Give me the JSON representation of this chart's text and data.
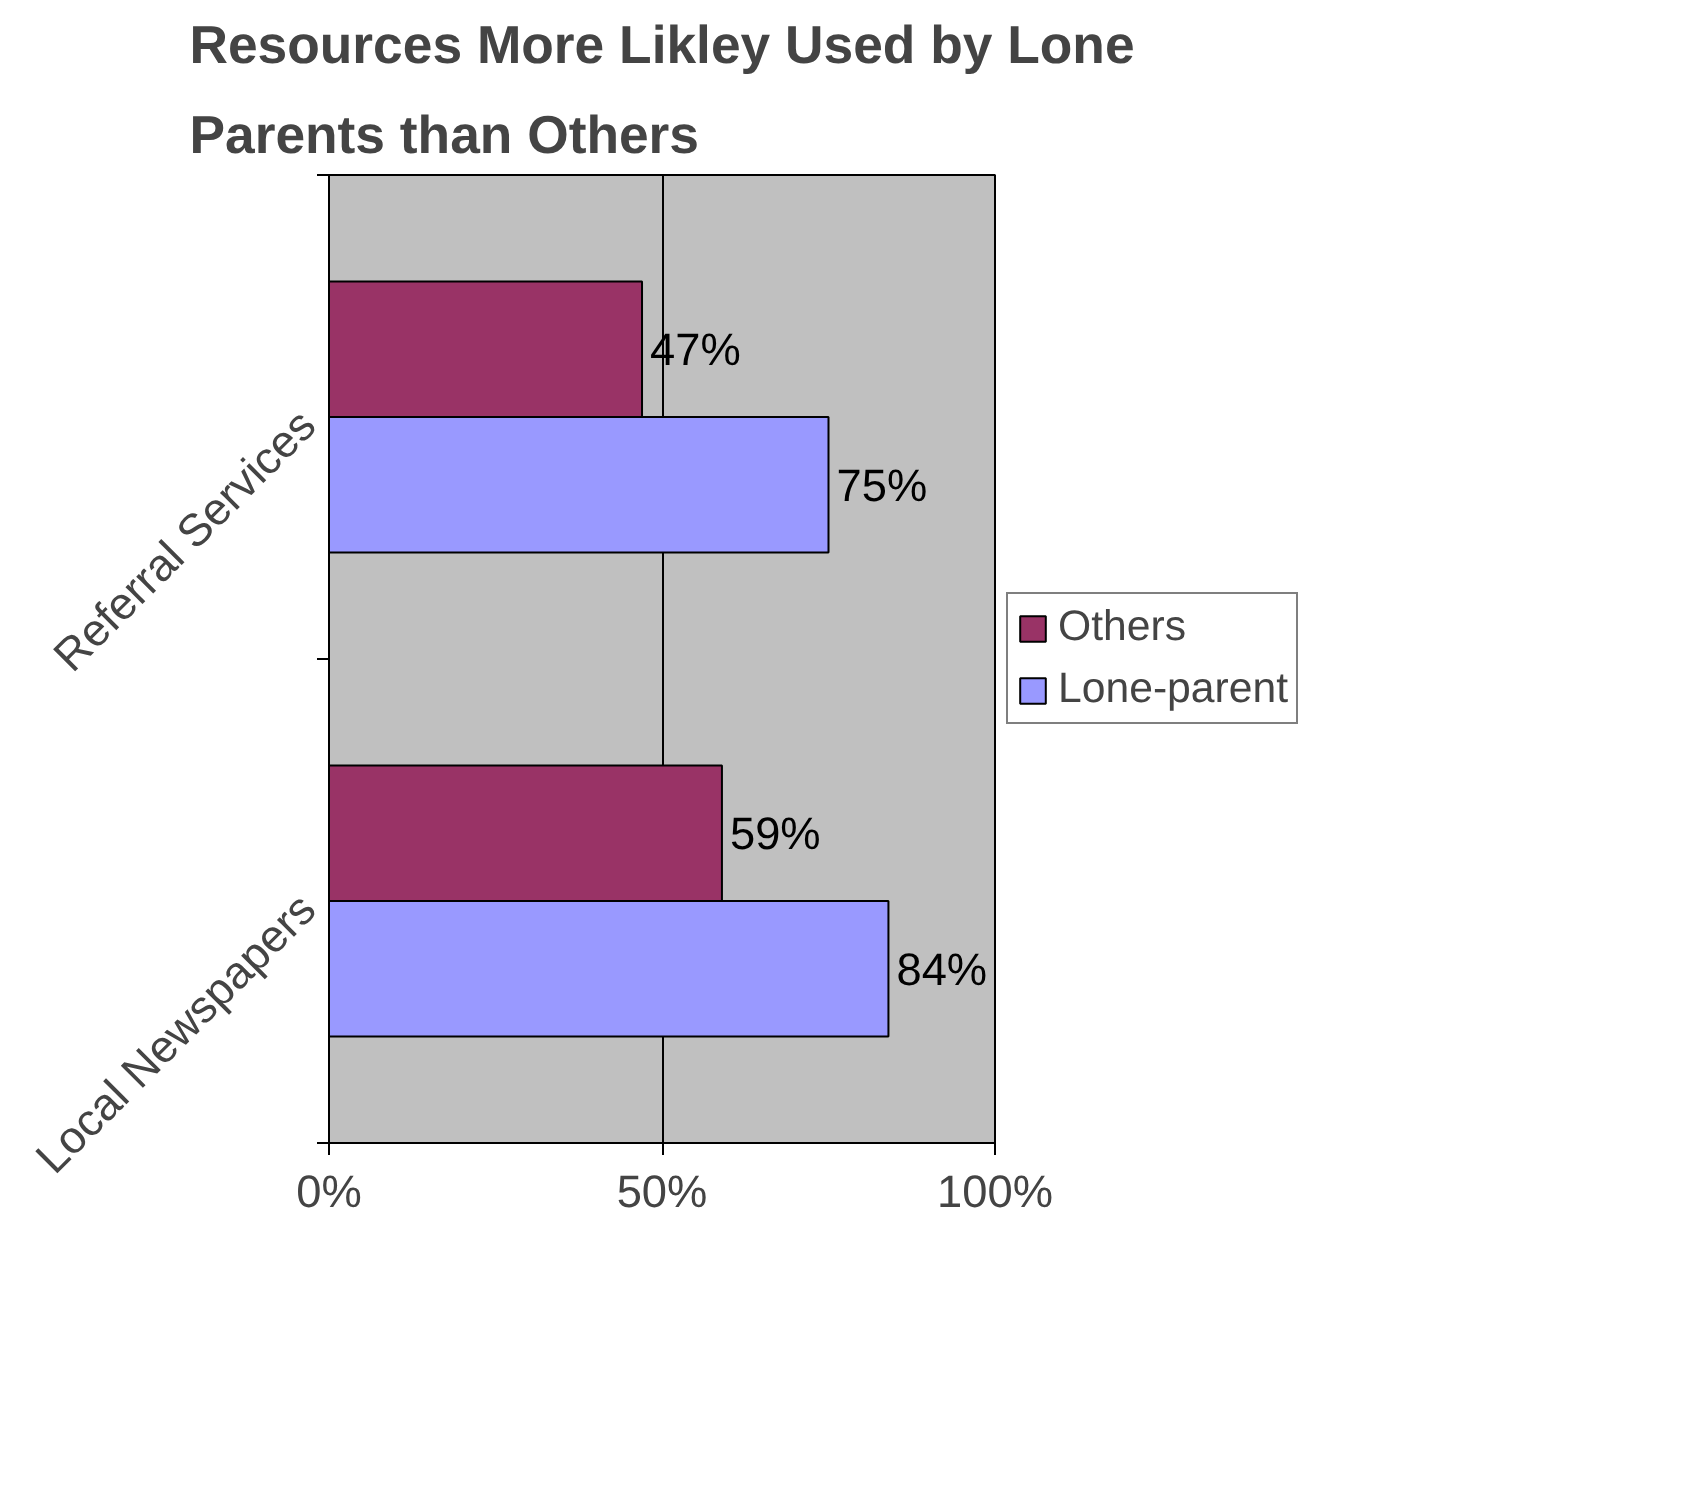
{
  "chart_data": {
    "type": "bar",
    "orientation": "horizontal",
    "title": "Resources More Likley Used by Lone\nParents than Others",
    "categories": [
      "Referral Services",
      "Local Newspapers"
    ],
    "series": [
      {
        "name": "Others",
        "color": "#993366",
        "values": [
          47,
          59
        ],
        "value_labels": [
          "47%",
          "59%"
        ]
      },
      {
        "name": "Lone-parent",
        "color": "#9999ff",
        "values": [
          75,
          84
        ],
        "value_labels": [
          "75%",
          "84%"
        ]
      }
    ],
    "xlim": [
      0,
      100
    ],
    "xticks": [
      {
        "value": 0,
        "label": "0%"
      },
      {
        "value": 50,
        "label": "50%"
      },
      {
        "value": 100,
        "label": "100%"
      }
    ],
    "grid": "x",
    "legend": "right"
  }
}
